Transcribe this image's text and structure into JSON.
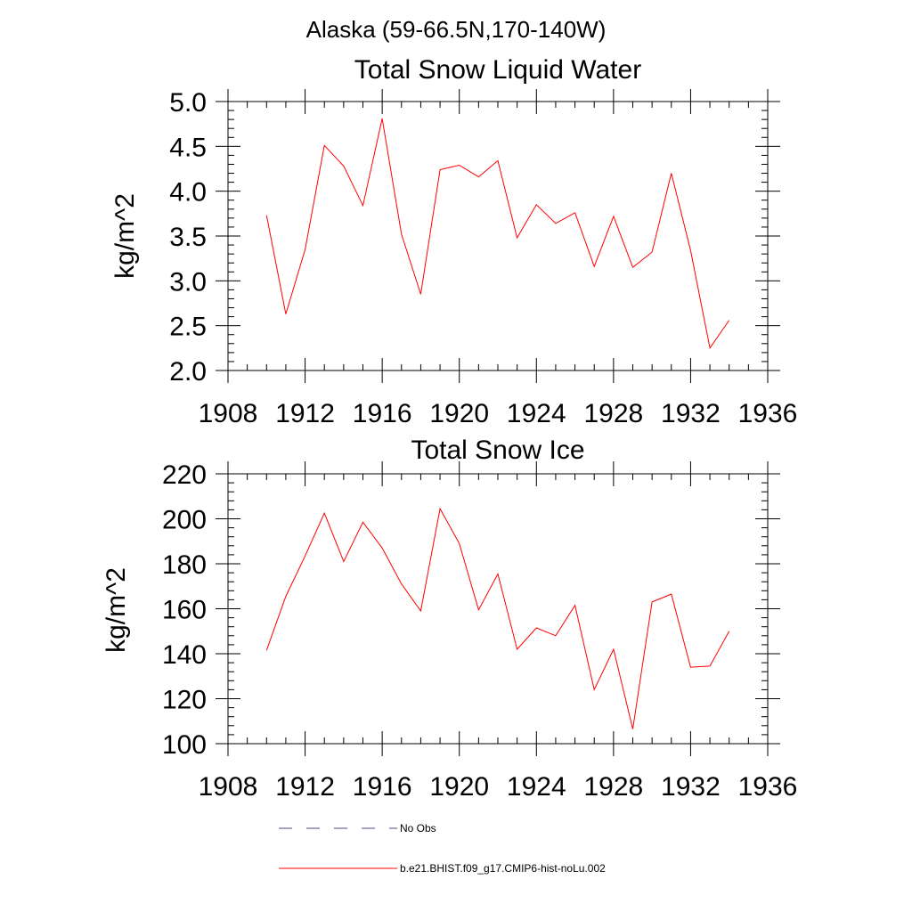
{
  "figure": {
    "suptitle": "Alaska (59-66.5N,170-140W)"
  },
  "legend": {
    "items": [
      {
        "label": "No Obs",
        "color": "#4a4a8c",
        "dash": "dashed"
      },
      {
        "label": "b.e21.BHIST.f09_g17.CMIP6-hist-noLu.002",
        "color": "#ff0000",
        "dash": "solid"
      }
    ]
  },
  "chart_data": [
    {
      "type": "line",
      "title": "Total Snow Liquid Water",
      "xlabel": "",
      "ylabel": "kg/m^2",
      "xlim": [
        1908,
        1936
      ],
      "ylim": [
        2.0,
        5.0
      ],
      "xticks": [
        1908,
        1912,
        1916,
        1920,
        1924,
        1928,
        1932,
        1936
      ],
      "yticks": [
        "2.0",
        "2.5",
        "3.0",
        "3.5",
        "4.0",
        "4.5",
        "5.0"
      ],
      "grid": false,
      "series": [
        {
          "name": "b.e21.BHIST.f09_g17.CMIP6-hist-noLu.002",
          "color": "#ff0000",
          "x": [
            1910,
            1911,
            1912,
            1913,
            1914,
            1915,
            1916,
            1917,
            1918,
            1919,
            1920,
            1921,
            1922,
            1923,
            1924,
            1925,
            1926,
            1927,
            1928,
            1929,
            1930,
            1931,
            1932,
            1933,
            1934
          ],
          "y": [
            3.73,
            2.63,
            3.35,
            4.51,
            4.28,
            3.84,
            4.81,
            3.52,
            2.85,
            4.24,
            4.29,
            4.16,
            4.34,
            3.48,
            3.85,
            3.64,
            3.76,
            3.16,
            3.72,
            3.15,
            3.32,
            4.2,
            3.34,
            2.25,
            2.56
          ]
        }
      ]
    },
    {
      "type": "line",
      "title": "Total Snow Ice",
      "xlabel": "",
      "ylabel": "kg/m^2",
      "xlim": [
        1908,
        1936
      ],
      "ylim": [
        100,
        220
      ],
      "xticks": [
        1908,
        1912,
        1916,
        1920,
        1924,
        1928,
        1932,
        1936
      ],
      "yticks": [
        "100",
        "120",
        "140",
        "160",
        "180",
        "200",
        "220"
      ],
      "grid": false,
      "series": [
        {
          "name": "b.e21.BHIST.f09_g17.CMIP6-hist-noLu.002",
          "color": "#ff0000",
          "x": [
            1910,
            1911,
            1912,
            1913,
            1914,
            1915,
            1916,
            1917,
            1918,
            1919,
            1920,
            1921,
            1922,
            1923,
            1924,
            1925,
            1926,
            1927,
            1928,
            1929,
            1930,
            1931,
            1932,
            1933,
            1934
          ],
          "y": [
            141.5,
            165.5,
            183.5,
            202.5,
            181,
            198.5,
            187,
            171,
            159,
            204.5,
            189,
            159.5,
            175.5,
            142,
            151.5,
            148,
            161.5,
            124,
            142,
            106.5,
            163,
            166.5,
            134,
            134.5,
            150
          ]
        }
      ]
    }
  ]
}
